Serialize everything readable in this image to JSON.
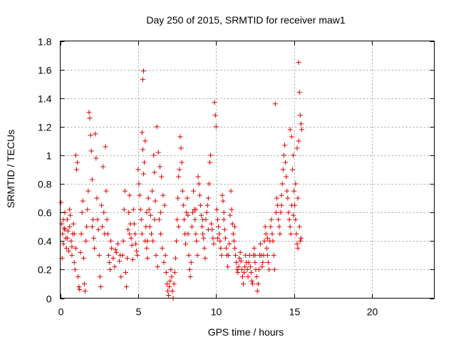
{
  "chart_data": {
    "type": "scatter",
    "title": "Day 250 of 2015, SRMTID for receiver maw1",
    "xlabel": "GPS time / hours",
    "ylabel": "SRMTID / TECUs",
    "xlim": [
      0,
      24
    ],
    "ylim": [
      0,
      1.8
    ],
    "xticks": [
      "0",
      "5",
      "10",
      "15",
      "20"
    ],
    "yticks": [
      "0",
      "0.2",
      "0.4",
      "0.6",
      "0.8",
      "1",
      "1.2",
      "1.4",
      "1.6",
      "1.8"
    ],
    "grid": true,
    "marker": "+",
    "color": "#dd0000",
    "points": [
      [
        0.1,
        0.52
      ],
      [
        0.15,
        0.45
      ],
      [
        0.2,
        0.38
      ],
      [
        0.25,
        0.49
      ],
      [
        0.3,
        0.6
      ],
      [
        0.35,
        0.42
      ],
      [
        0.4,
        0.35
      ],
      [
        0.45,
        0.55
      ],
      [
        0.5,
        0.47
      ],
      [
        0.55,
        0.33
      ],
      [
        0.6,
        0.5
      ],
      [
        0.65,
        0.58
      ],
      [
        0.7,
        0.4
      ],
      [
        0.75,
        0.3
      ],
      [
        0.8,
        0.45
      ],
      [
        0.85,
        0.52
      ],
      [
        0.9,
        0.25
      ],
      [
        0.95,
        0.2
      ],
      [
        1.0,
        0.35
      ],
      [
        0.05,
        0.67
      ],
      [
        0.12,
        0.28
      ],
      [
        1.0,
        1.0
      ],
      [
        1.05,
        0.9
      ],
      [
        1.1,
        0.95
      ],
      [
        1.15,
        0.15
      ],
      [
        1.2,
        0.08
      ],
      [
        1.25,
        0.06
      ],
      [
        1.3,
        0.32
      ],
      [
        1.35,
        0.45
      ],
      [
        1.4,
        0.6
      ],
      [
        1.45,
        0.68
      ],
      [
        1.5,
        0.28
      ],
      [
        1.55,
        0.1
      ],
      [
        1.6,
        0.05
      ],
      [
        1.65,
        0.4
      ],
      [
        1.7,
        0.5
      ],
      [
        1.75,
        0.62
      ],
      [
        1.8,
        0.75
      ],
      [
        1.85,
        1.3
      ],
      [
        1.9,
        1.26
      ],
      [
        1.95,
        1.14
      ],
      [
        2.0,
        1.03
      ],
      [
        2.05,
        0.83
      ],
      [
        2.1,
        0.55
      ],
      [
        2.15,
        0.42
      ],
      [
        2.2,
        0.35
      ],
      [
        2.25,
        1.15
      ],
      [
        2.3,
        0.98
      ],
      [
        2.35,
        0.7
      ],
      [
        2.4,
        0.55
      ],
      [
        2.45,
        0.48
      ],
      [
        2.5,
        0.3
      ],
      [
        2.55,
        0.15
      ],
      [
        2.6,
        0.08
      ],
      [
        2.65,
        0.65
      ],
      [
        2.7,
        0.5
      ],
      [
        2.75,
        0.92
      ],
      [
        2.8,
        0.6
      ],
      [
        2.85,
        0.45
      ],
      [
        2.9,
        1.06
      ],
      [
        2.95,
        0.75
      ],
      [
        3.0,
        0.55
      ],
      [
        3.05,
        0.45
      ],
      [
        3.1,
        0.3
      ],
      [
        3.15,
        0.25
      ],
      [
        3.2,
        0.2
      ],
      [
        3.3,
        0.35
      ],
      [
        3.4,
        0.28
      ],
      [
        3.5,
        0.22
      ],
      [
        3.6,
        0.32
      ],
      [
        3.7,
        0.38
      ],
      [
        3.8,
        0.26
      ],
      [
        3.9,
        0.15
      ],
      [
        4.0,
        0.3
      ],
      [
        4.05,
        0.4
      ],
      [
        4.1,
        0.62
      ],
      [
        4.15,
        0.75
      ],
      [
        4.2,
        0.18
      ],
      [
        4.25,
        0.08
      ],
      [
        4.3,
        0.28
      ],
      [
        4.35,
        0.48
      ],
      [
        4.4,
        0.6
      ],
      [
        4.45,
        0.72
      ],
      [
        4.5,
        0.52
      ],
      [
        4.55,
        0.42
      ],
      [
        4.6,
        0.37
      ],
      [
        4.65,
        0.27
      ],
      [
        4.7,
        0.62
      ],
      [
        4.75,
        0.52
      ],
      [
        4.8,
        0.45
      ],
      [
        4.85,
        0.38
      ],
      [
        4.9,
        0.33
      ],
      [
        4.95,
        0.3
      ],
      [
        5.0,
        0.9
      ],
      [
        5.05,
        0.8
      ],
      [
        5.1,
        0.72
      ],
      [
        5.15,
        0.62
      ],
      [
        5.2,
        0.55
      ],
      [
        5.25,
        1.16
      ],
      [
        5.3,
        1.04
      ],
      [
        5.35,
        0.87
      ],
      [
        5.4,
        0.95
      ],
      [
        5.45,
        1.1
      ],
      [
        5.5,
        0.5
      ],
      [
        5.55,
        0.35
      ],
      [
        5.6,
        0.28
      ],
      [
        5.65,
        0.7
      ],
      [
        5.7,
        0.62
      ],
      [
        5.8,
        0.58
      ],
      [
        5.9,
        0.75
      ],
      [
        6.0,
        1.0
      ],
      [
        6.05,
        0.88
      ],
      [
        6.1,
        0.68
      ],
      [
        6.2,
        1.2
      ],
      [
        6.3,
        1.02
      ],
      [
        6.4,
        0.92
      ],
      [
        6.5,
        0.85
      ],
      [
        6.6,
        0.72
      ],
      [
        6.7,
        0.65
      ],
      [
        5.35,
        1.59
      ],
      [
        5.3,
        1.53
      ],
      [
        5.25,
        0.45
      ],
      [
        5.45,
        0.4
      ],
      [
        5.55,
        0.6
      ],
      [
        5.75,
        0.5
      ],
      [
        5.85,
        0.45
      ],
      [
        5.95,
        0.4
      ],
      [
        6.15,
        0.3
      ],
      [
        6.25,
        0.22
      ],
      [
        6.35,
        0.55
      ],
      [
        6.45,
        0.45
      ],
      [
        6.55,
        0.35
      ],
      [
        6.65,
        0.25
      ],
      [
        6.75,
        0.3
      ],
      [
        6.8,
        0.18
      ],
      [
        6.85,
        0.1
      ],
      [
        6.9,
        0.05
      ],
      [
        6.95,
        0.02
      ],
      [
        7.0,
        0.08
      ],
      [
        7.05,
        0.12
      ],
      [
        7.1,
        0.2
      ],
      [
        7.15,
        0.15
      ],
      [
        7.2,
        0.05
      ],
      [
        7.25,
        0.0
      ],
      [
        7.3,
        0.1
      ],
      [
        7.35,
        0.18
      ],
      [
        7.4,
        0.28
      ],
      [
        7.45,
        0.4
      ],
      [
        7.5,
        0.55
      ],
      [
        7.55,
        0.7
      ],
      [
        7.6,
        0.85
      ],
      [
        7.65,
        0.9
      ],
      [
        7.7,
        1.13
      ],
      [
        7.75,
        1.05
      ],
      [
        7.8,
        0.95
      ],
      [
        7.85,
        0.75
      ],
      [
        7.9,
        0.65
      ],
      [
        7.95,
        0.55
      ],
      [
        8.0,
        0.45
      ],
      [
        8.05,
        0.38
      ],
      [
        8.1,
        0.6
      ],
      [
        8.15,
        0.7
      ],
      [
        8.2,
        0.45
      ],
      [
        8.25,
        0.3
      ],
      [
        8.3,
        0.2
      ],
      [
        8.35,
        0.15
      ],
      [
        8.4,
        0.25
      ],
      [
        8.45,
        0.5
      ],
      [
        8.5,
        0.6
      ],
      [
        8.55,
        0.75
      ],
      [
        8.6,
        0.62
      ],
      [
        8.65,
        0.55
      ],
      [
        8.7,
        0.45
      ],
      [
        8.75,
        0.4
      ],
      [
        8.8,
        0.3
      ],
      [
        8.85,
        0.85
      ],
      [
        8.9,
        0.8
      ],
      [
        8.95,
        0.72
      ],
      [
        9.0,
        0.65
      ],
      [
        9.05,
        0.58
      ],
      [
        9.1,
        0.5
      ],
      [
        9.15,
        0.45
      ],
      [
        9.2,
        0.42
      ],
      [
        9.25,
        0.35
      ],
      [
        9.3,
        0.28
      ],
      [
        9.35,
        0.55
      ],
      [
        9.4,
        0.6
      ],
      [
        9.45,
        0.65
      ],
      [
        9.5,
        0.7
      ],
      [
        9.55,
        0.8
      ],
      [
        9.6,
        0.95
      ],
      [
        9.65,
        1.0
      ],
      [
        9.7,
        0.52
      ],
      [
        9.75,
        0.48
      ],
      [
        9.8,
        0.42
      ],
      [
        9.85,
        0.38
      ],
      [
        9.9,
        1.37
      ],
      [
        9.95,
        1.28
      ],
      [
        10.0,
        1.2
      ],
      [
        10.05,
        0.62
      ],
      [
        10.1,
        0.55
      ],
      [
        10.15,
        0.5
      ],
      [
        10.2,
        0.45
      ],
      [
        10.25,
        0.4
      ],
      [
        10.3,
        0.35
      ],
      [
        10.35,
        0.3
      ],
      [
        10.4,
        0.72
      ],
      [
        10.45,
        0.68
      ],
      [
        10.5,
        0.55
      ],
      [
        10.55,
        0.48
      ],
      [
        10.6,
        0.42
      ],
      [
        10.65,
        0.35
      ],
      [
        10.7,
        0.3
      ],
      [
        10.75,
        0.22
      ],
      [
        10.8,
        0.3
      ],
      [
        10.85,
        0.38
      ],
      [
        10.9,
        0.58
      ],
      [
        10.95,
        0.75
      ],
      [
        11.0,
        0.62
      ],
      [
        11.05,
        0.52
      ],
      [
        11.1,
        0.45
      ],
      [
        11.15,
        0.4
      ],
      [
        11.2,
        0.35
      ],
      [
        11.25,
        0.3
      ],
      [
        11.3,
        0.25
      ],
      [
        11.35,
        0.2
      ],
      [
        11.4,
        0.18
      ],
      [
        11.45,
        0.22
      ],
      [
        11.5,
        0.28
      ],
      [
        11.55,
        0.32
      ],
      [
        11.6,
        0.26
      ],
      [
        11.65,
        0.2
      ],
      [
        11.7,
        0.15
      ],
      [
        11.75,
        0.1
      ],
      [
        11.8,
        0.18
      ],
      [
        11.85,
        0.22
      ],
      [
        11.9,
        0.3
      ],
      [
        11.95,
        0.25
      ],
      [
        12.0,
        0.2
      ],
      [
        12.05,
        0.15
      ],
      [
        12.1,
        0.25
      ],
      [
        12.15,
        0.3
      ],
      [
        12.2,
        0.22
      ],
      [
        12.25,
        0.18
      ],
      [
        12.3,
        0.12
      ],
      [
        12.35,
        0.1
      ],
      [
        12.4,
        0.3
      ],
      [
        12.45,
        0.35
      ],
      [
        12.5,
        0.25
      ],
      [
        12.55,
        0.2
      ],
      [
        12.6,
        0.15
      ],
      [
        12.65,
        0.05
      ],
      [
        12.7,
        0.1
      ],
      [
        12.75,
        0.2
      ],
      [
        12.8,
        0.3
      ],
      [
        12.85,
        0.38
      ],
      [
        12.9,
        0.3
      ],
      [
        12.95,
        0.22
      ],
      [
        13.0,
        0.25
      ],
      [
        13.05,
        0.3
      ],
      [
        13.1,
        0.4
      ],
      [
        13.15,
        0.5
      ],
      [
        13.2,
        0.45
      ],
      [
        13.25,
        0.35
      ],
      [
        13.3,
        0.3
      ],
      [
        13.35,
        0.25
      ],
      [
        13.4,
        0.2
      ],
      [
        13.45,
        0.4
      ],
      [
        13.5,
        0.5
      ],
      [
        13.55,
        0.55
      ],
      [
        13.6,
        0.45
      ],
      [
        13.65,
        0.4
      ],
      [
        13.7,
        0.3
      ],
      [
        13.75,
        0.2
      ],
      [
        13.8,
        1.36
      ],
      [
        13.85,
        0.6
      ],
      [
        13.9,
        0.7
      ],
      [
        13.95,
        0.65
      ],
      [
        14.0,
        0.55
      ],
      [
        14.05,
        0.5
      ],
      [
        14.1,
        0.45
      ],
      [
        14.15,
        0.6
      ],
      [
        14.2,
        0.72
      ],
      [
        14.25,
        0.8
      ],
      [
        14.3,
        0.9
      ],
      [
        14.35,
        1.0
      ],
      [
        14.4,
        1.07
      ],
      [
        14.45,
        0.95
      ],
      [
        14.5,
        0.85
      ],
      [
        14.55,
        0.75
      ],
      [
        14.6,
        0.7
      ],
      [
        14.65,
        0.6
      ],
      [
        14.7,
        0.55
      ],
      [
        14.75,
        0.5
      ],
      [
        14.8,
        0.45
      ],
      [
        14.85,
        0.65
      ],
      [
        14.9,
        0.9
      ],
      [
        14.95,
        1.0
      ],
      [
        15.0,
        0.75
      ],
      [
        15.05,
        0.65
      ],
      [
        15.1,
        0.55
      ],
      [
        15.15,
        0.45
      ],
      [
        15.2,
        0.38
      ],
      [
        15.25,
        0.35
      ],
      [
        15.3,
        1.65
      ],
      [
        15.35,
        1.44
      ],
      [
        15.4,
        1.28
      ],
      [
        15.45,
        1.22
      ],
      [
        15.5,
        1.18
      ],
      [
        15.3,
        1.1
      ],
      [
        15.2,
        1.05
      ],
      [
        15.35,
        0.5
      ],
      [
        15.4,
        0.4
      ],
      [
        15.45,
        0.42
      ],
      [
        15.1,
        0.8
      ],
      [
        15.25,
        0.7
      ],
      [
        14.95,
        0.58
      ],
      [
        14.85,
        1.13
      ],
      [
        14.75,
        1.18
      ],
      [
        0.2,
        0.55
      ],
      [
        0.3,
        0.48
      ],
      [
        0.45,
        0.42
      ],
      [
        0.6,
        0.62
      ],
      [
        0.75,
        0.36
      ],
      [
        0.9,
        0.45
      ],
      [
        2.05,
        0.5
      ],
      [
        3.25,
        0.4
      ],
      [
        3.55,
        0.34
      ],
      [
        3.85,
        0.3
      ],
      [
        4.45,
        0.45
      ],
      [
        5.6,
        0.4
      ],
      [
        6.05,
        0.55
      ],
      [
        6.45,
        0.6
      ],
      [
        7.6,
        0.5
      ],
      [
        8.2,
        0.58
      ],
      [
        8.7,
        0.62
      ],
      [
        9.15,
        0.55
      ],
      [
        9.5,
        0.48
      ],
      [
        10.1,
        0.42
      ],
      [
        10.5,
        0.6
      ],
      [
        11.2,
        0.5
      ],
      [
        12.5,
        0.3
      ],
      [
        13.3,
        0.42
      ],
      [
        14.2,
        0.65
      ]
    ]
  }
}
